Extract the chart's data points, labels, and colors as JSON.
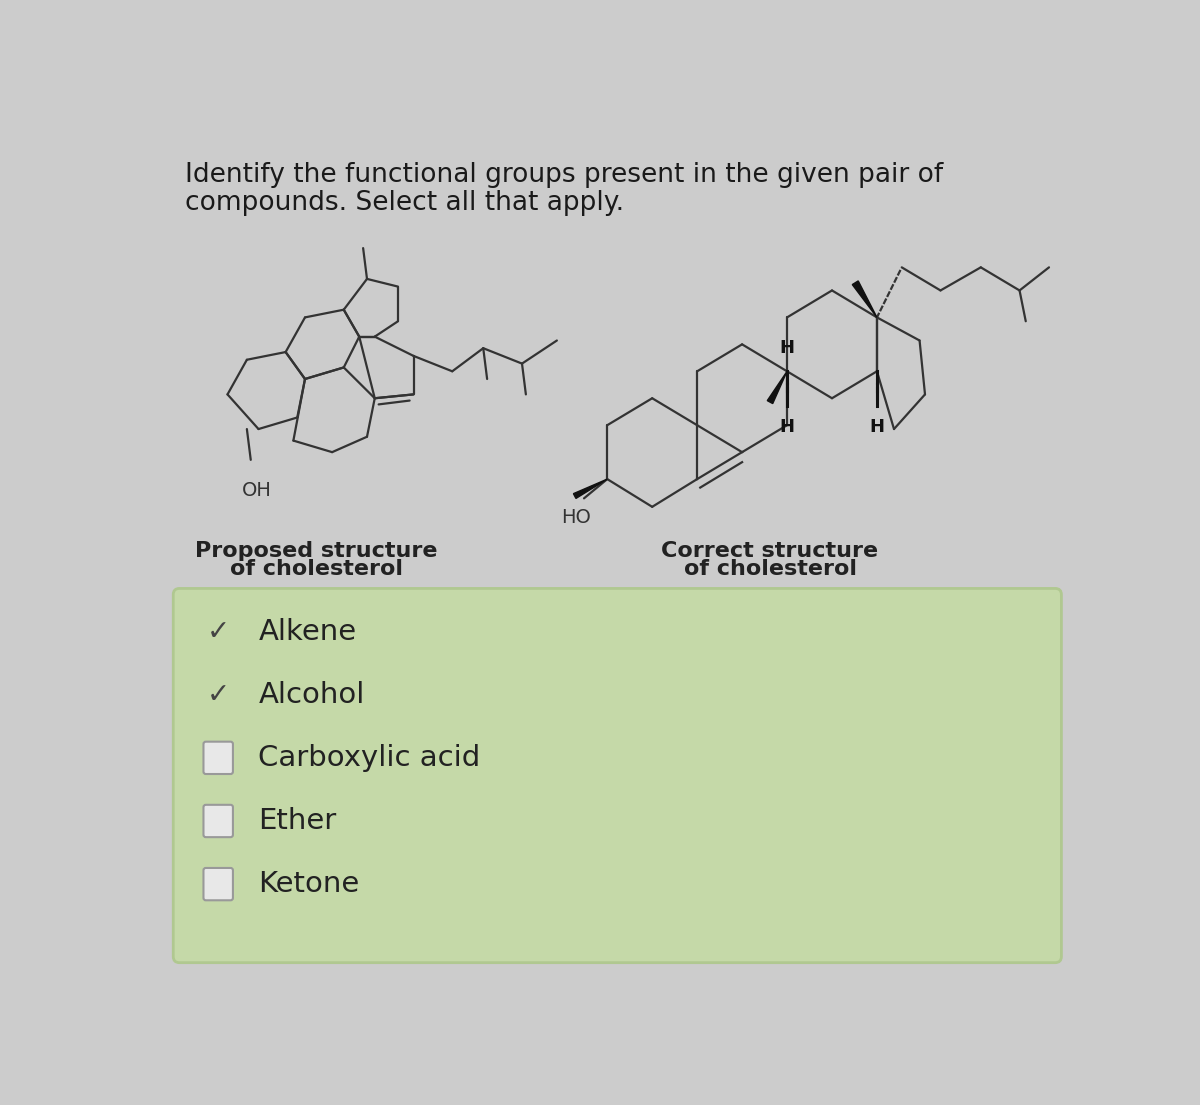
{
  "title_line1": "Identify the functional groups present in the given pair of",
  "title_line2": "compounds. Select all that apply.",
  "bg_color": "#cccccc",
  "title_color": "#1a1a1a",
  "title_fontsize": 19,
  "proposed_label_line1": "Proposed structure",
  "proposed_label_line2": "of cholesterol",
  "correct_label_line1": "Correct structure",
  "correct_label_line2": "of cholesterol",
  "label_color": "#222222",
  "label_fontsize": 16,
  "label_fontweight": "bold",
  "oh_label": "OH",
  "ho_label": "HO",
  "checkbox_bg": "#c5d9a8",
  "checkbox_border": "#b0c890",
  "items": [
    {
      "label": "Alkene",
      "checked": true
    },
    {
      "label": "Alcohol",
      "checked": true
    },
    {
      "label": "Carboxylic acid",
      "checked": false
    },
    {
      "label": "Ether",
      "checked": false
    },
    {
      "label": "Ketone",
      "checked": false
    }
  ],
  "check_color": "#444444",
  "item_fontsize": 21,
  "item_color": "#222222",
  "bond_color": "#333333",
  "bond_lw": 1.6
}
